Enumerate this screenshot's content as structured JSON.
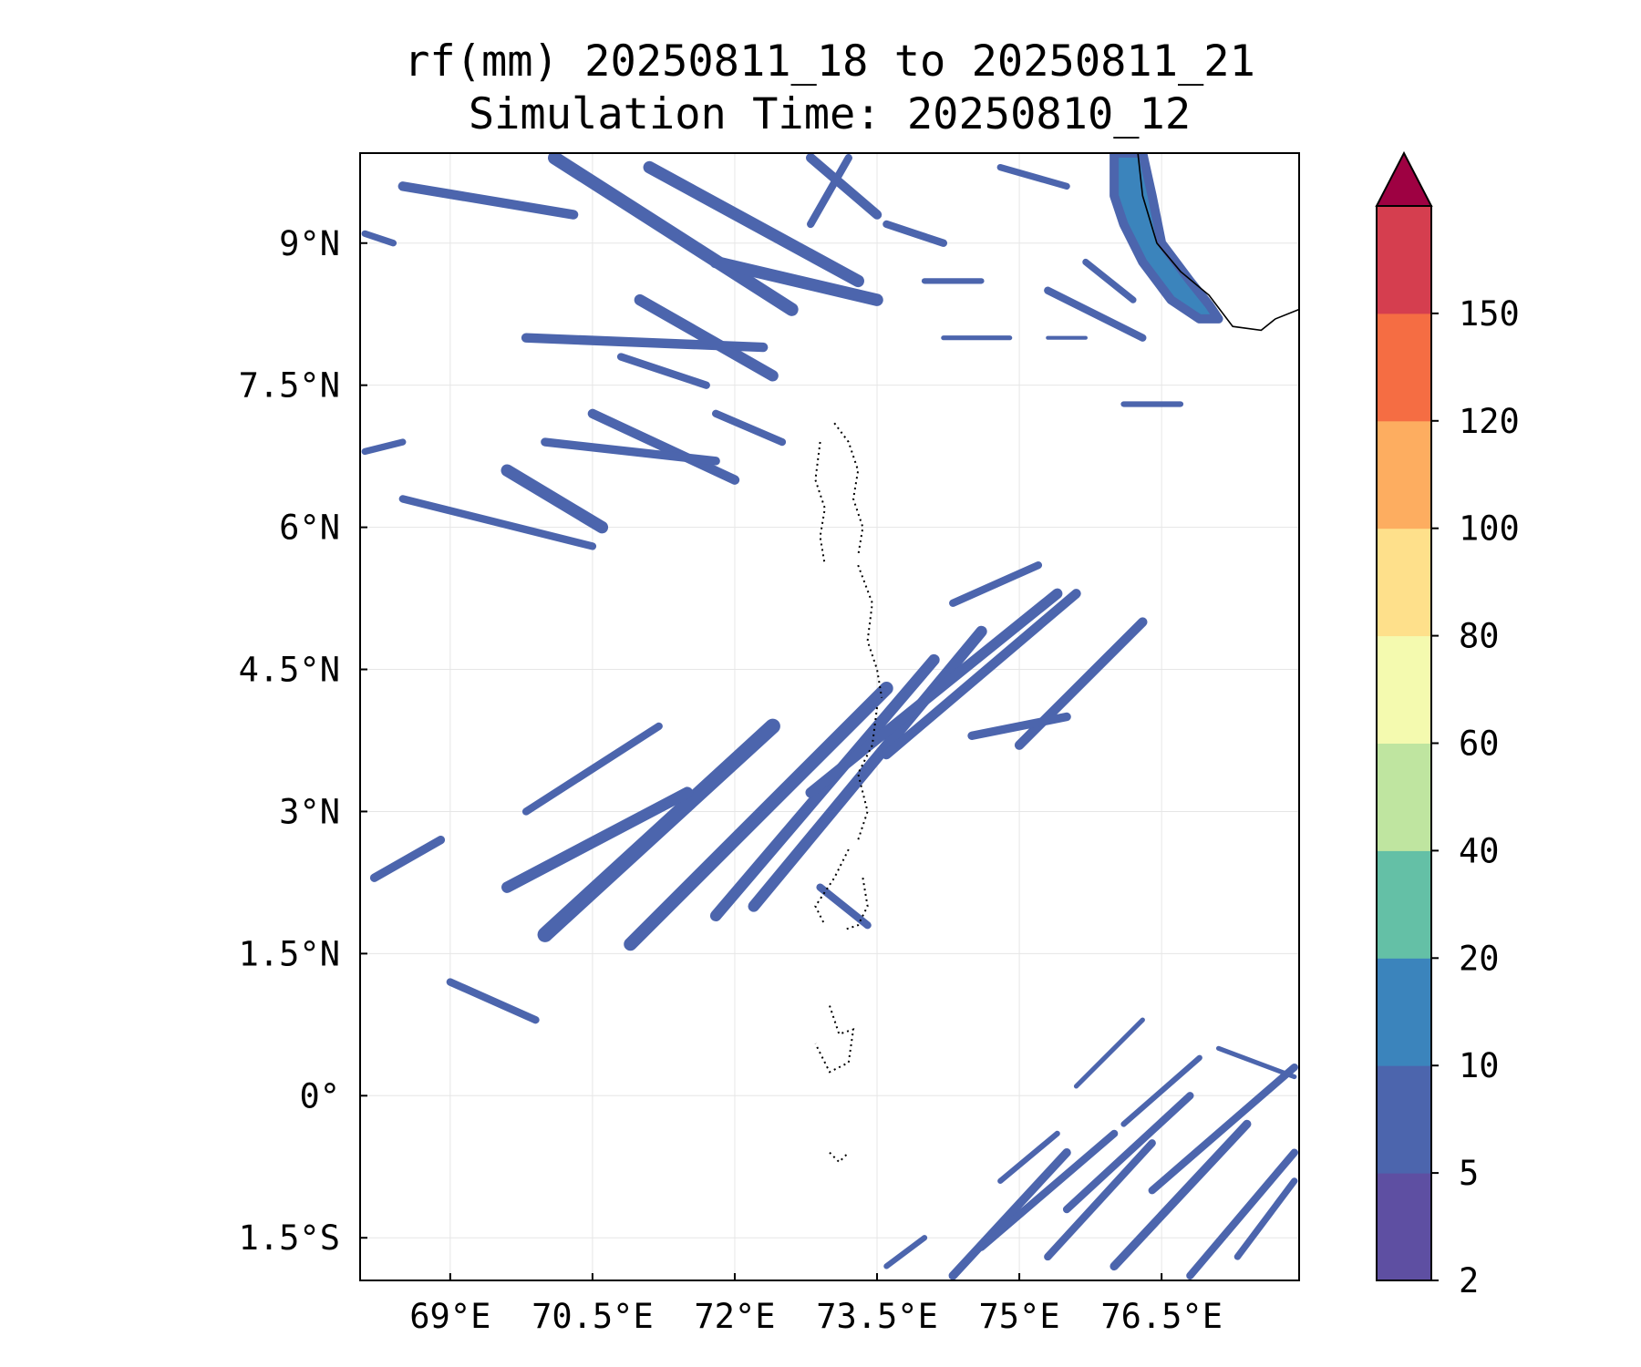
{
  "title": {
    "line1": "rf(mm) 20250811_18 to 20250811_21",
    "line2": "Simulation Time: 20250810_12"
  },
  "map": {
    "lon_range": [
      68.05,
      77.95
    ],
    "lat_range": [
      -1.95,
      9.95
    ],
    "x_ticks": [
      {
        "value": 69,
        "label": "69°E"
      },
      {
        "value": 70.5,
        "label": "70.5°E"
      },
      {
        "value": 72,
        "label": "72°E"
      },
      {
        "value": 73.5,
        "label": "73.5°E"
      },
      {
        "value": 75,
        "label": "75°E"
      },
      {
        "value": 76.5,
        "label": "76.5°E"
      }
    ],
    "y_ticks": [
      {
        "value": 9,
        "label": "9°N"
      },
      {
        "value": 7.5,
        "label": "7.5°N"
      },
      {
        "value": 6,
        "label": "6°N"
      },
      {
        "value": 4.5,
        "label": "4.5°N"
      },
      {
        "value": 3,
        "label": "3°N"
      },
      {
        "value": 1.5,
        "label": "1.5°N"
      },
      {
        "value": 0,
        "label": "0°"
      },
      {
        "value": -1.5,
        "label": "1.5°S"
      }
    ],
    "gridlines": true,
    "rain_bands": [
      {
        "from": [
          70.0,
          1.7
        ],
        "to": [
          72.4,
          3.9
        ],
        "width": 0.16
      },
      {
        "from": [
          70.9,
          1.6
        ],
        "to": [
          73.6,
          4.3
        ],
        "width": 0.14
      },
      {
        "from": [
          71.8,
          1.9
        ],
        "to": [
          74.1,
          4.6
        ],
        "width": 0.12
      },
      {
        "from": [
          72.2,
          2.0
        ],
        "to": [
          74.6,
          4.9
        ],
        "width": 0.12
      },
      {
        "from": [
          72.8,
          3.2
        ],
        "to": [
          75.4,
          5.3
        ],
        "width": 0.11
      },
      {
        "from": [
          73.6,
          3.6
        ],
        "to": [
          75.6,
          5.3
        ],
        "width": 0.1
      },
      {
        "from": [
          75.0,
          3.7
        ],
        "to": [
          76.3,
          5.0
        ],
        "width": 0.1
      },
      {
        "from": [
          69.6,
          2.2
        ],
        "to": [
          71.5,
          3.2
        ],
        "width": 0.12
      },
      {
        "from": [
          68.2,
          2.3
        ],
        "to": [
          68.9,
          2.7
        ],
        "width": 0.09
      },
      {
        "from": [
          69.0,
          1.2
        ],
        "to": [
          69.9,
          0.8
        ],
        "width": 0.08
      },
      {
        "from": [
          74.5,
          3.8
        ],
        "to": [
          75.5,
          4.0
        ],
        "width": 0.09
      },
      {
        "from": [
          74.3,
          5.2
        ],
        "to": [
          75.2,
          5.6
        ],
        "width": 0.08
      },
      {
        "from": [
          69.8,
          3.0
        ],
        "to": [
          71.2,
          3.9
        ],
        "width": 0.08
      },
      {
        "from": [
          72.9,
          2.2
        ],
        "to": [
          73.4,
          1.8
        ],
        "width": 0.08
      },
      {
        "from": [
          68.5,
          9.6
        ],
        "to": [
          70.3,
          9.3
        ],
        "width": 0.1
      },
      {
        "from": [
          70.1,
          9.9
        ],
        "to": [
          72.6,
          8.3
        ],
        "width": 0.14
      },
      {
        "from": [
          71.1,
          9.8
        ],
        "to": [
          73.3,
          8.6
        ],
        "width": 0.13
      },
      {
        "from": [
          71.8,
          8.8
        ],
        "to": [
          73.5,
          8.4
        ],
        "width": 0.13
      },
      {
        "from": [
          72.8,
          9.9
        ],
        "to": [
          73.5,
          9.3
        ],
        "width": 0.1
      },
      {
        "from": [
          73.6,
          9.2
        ],
        "to": [
          74.2,
          9.0
        ],
        "width": 0.08
      },
      {
        "from": [
          72.8,
          9.2
        ],
        "to": [
          73.2,
          9.9
        ],
        "width": 0.08
      },
      {
        "from": [
          69.8,
          8.0
        ],
        "to": [
          72.3,
          7.9
        ],
        "width": 0.1
      },
      {
        "from": [
          71.0,
          8.4
        ],
        "to": [
          72.4,
          7.6
        ],
        "width": 0.12
      },
      {
        "from": [
          69.6,
          6.6
        ],
        "to": [
          70.6,
          6.0
        ],
        "width": 0.13
      },
      {
        "from": [
          70.5,
          7.2
        ],
        "to": [
          72.0,
          6.5
        ],
        "width": 0.1
      },
      {
        "from": [
          70.0,
          6.9
        ],
        "to": [
          71.8,
          6.7
        ],
        "width": 0.09
      },
      {
        "from": [
          68.5,
          6.3
        ],
        "to": [
          70.5,
          5.8
        ],
        "width": 0.08
      },
      {
        "from": [
          70.8,
          7.8
        ],
        "to": [
          71.7,
          7.5
        ],
        "width": 0.08
      },
      {
        "from": [
          71.8,
          7.2
        ],
        "to": [
          72.5,
          6.9
        ],
        "width": 0.08
      },
      {
        "from": [
          68.1,
          6.8
        ],
        "to": [
          68.5,
          6.9
        ],
        "width": 0.07
      },
      {
        "from": [
          68.1,
          9.1
        ],
        "to": [
          68.4,
          9.0
        ],
        "width": 0.07
      },
      {
        "from": [
          74.0,
          8.6
        ],
        "to": [
          74.6,
          8.6
        ],
        "width": 0.06
      },
      {
        "from": [
          74.8,
          9.8
        ],
        "to": [
          75.5,
          9.6
        ],
        "width": 0.07
      },
      {
        "from": [
          75.3,
          8.5
        ],
        "to": [
          76.3,
          8.0
        ],
        "width": 0.08
      },
      {
        "from": [
          74.2,
          8.0
        ],
        "to": [
          74.9,
          8.0
        ],
        "width": 0.05
      },
      {
        "from": [
          75.3,
          8.0
        ],
        "to": [
          75.7,
          8.0
        ],
        "width": 0.04
      },
      {
        "from": [
          76.1,
          7.3
        ],
        "to": [
          76.7,
          7.3
        ],
        "width": 0.06
      },
      {
        "from": [
          75.7,
          8.8
        ],
        "to": [
          76.2,
          8.4
        ],
        "width": 0.07
      },
      {
        "from": [
          74.3,
          -1.9
        ],
        "to": [
          75.5,
          -0.6
        ],
        "width": 0.09
      },
      {
        "from": [
          74.6,
          -1.6
        ],
        "to": [
          76.0,
          -0.4
        ],
        "width": 0.08
      },
      {
        "from": [
          75.3,
          -1.7
        ],
        "to": [
          76.4,
          -0.5
        ],
        "width": 0.08
      },
      {
        "from": [
          75.5,
          -1.2
        ],
        "to": [
          76.8,
          0.0
        ],
        "width": 0.08
      },
      {
        "from": [
          76.0,
          -1.8
        ],
        "to": [
          77.4,
          -0.3
        ],
        "width": 0.09
      },
      {
        "from": [
          76.4,
          -1.0
        ],
        "to": [
          77.9,
          0.3
        ],
        "width": 0.08
      },
      {
        "from": [
          76.8,
          -1.9
        ],
        "to": [
          77.9,
          -0.6
        ],
        "width": 0.08
      },
      {
        "from": [
          77.3,
          -1.7
        ],
        "to": [
          77.9,
          -0.9
        ],
        "width": 0.07
      },
      {
        "from": [
          74.8,
          -0.9
        ],
        "to": [
          75.4,
          -0.4
        ],
        "width": 0.06
      },
      {
        "from": [
          73.6,
          -1.8
        ],
        "to": [
          74.0,
          -1.5
        ],
        "width": 0.06
      },
      {
        "from": [
          75.6,
          0.1
        ],
        "to": [
          76.3,
          0.8
        ],
        "width": 0.05
      },
      {
        "from": [
          77.1,
          0.5
        ],
        "to": [
          77.9,
          0.2
        ],
        "width": 0.05
      },
      {
        "from": [
          76.1,
          -0.3
        ],
        "to": [
          76.9,
          0.4
        ],
        "width": 0.06
      }
    ],
    "coast_heavy": {
      "polygon": [
        [
          76.0,
          9.95
        ],
        [
          76.3,
          9.95
        ],
        [
          76.4,
          9.5
        ],
        [
          76.5,
          9.0
        ],
        [
          76.8,
          8.6
        ],
        [
          77.0,
          8.35
        ],
        [
          77.1,
          8.2
        ],
        [
          76.9,
          8.2
        ],
        [
          76.6,
          8.4
        ],
        [
          76.3,
          8.8
        ],
        [
          76.1,
          9.2
        ],
        [
          76.0,
          9.5
        ]
      ]
    },
    "coastline": [
      [
        76.25,
        9.95
      ],
      [
        76.3,
        9.5
      ],
      [
        76.45,
        9.0
      ],
      [
        76.7,
        8.7
      ],
      [
        77.0,
        8.45
      ],
      [
        77.25,
        8.12
      ],
      [
        77.55,
        8.08
      ],
      [
        77.7,
        8.2
      ],
      [
        77.95,
        8.3
      ]
    ],
    "atoll_outlines": [
      [
        [
          73.05,
          7.1
        ],
        [
          73.2,
          6.9
        ],
        [
          73.3,
          6.6
        ],
        [
          73.25,
          6.3
        ],
        [
          73.35,
          6.0
        ],
        [
          73.3,
          5.7
        ]
      ],
      [
        [
          72.9,
          6.9
        ],
        [
          72.85,
          6.5
        ],
        [
          72.95,
          6.2
        ],
        [
          72.9,
          5.9
        ],
        [
          72.95,
          5.6
        ]
      ],
      [
        [
          73.3,
          5.6
        ],
        [
          73.45,
          5.2
        ],
        [
          73.4,
          4.8
        ],
        [
          73.5,
          4.5
        ],
        [
          73.55,
          4.2
        ]
      ],
      [
        [
          73.5,
          4.1
        ],
        [
          73.45,
          3.7
        ],
        [
          73.3,
          3.4
        ],
        [
          73.4,
          3.0
        ],
        [
          73.3,
          2.7
        ]
      ],
      [
        [
          73.2,
          2.6
        ],
        [
          73.05,
          2.3
        ],
        [
          72.85,
          2.0
        ],
        [
          72.95,
          1.8
        ]
      ],
      [
        [
          73.35,
          2.3
        ],
        [
          73.4,
          2.0
        ],
        [
          73.3,
          1.8
        ],
        [
          73.15,
          1.75
        ]
      ],
      [
        [
          73.0,
          0.95
        ],
        [
          73.1,
          0.65
        ],
        [
          73.25,
          0.7
        ],
        [
          73.2,
          0.35
        ],
        [
          73.0,
          0.25
        ],
        [
          72.85,
          0.55
        ]
      ],
      [
        [
          73.0,
          -0.6
        ],
        [
          73.1,
          -0.7
        ],
        [
          73.2,
          -0.6
        ]
      ]
    ]
  },
  "colorbar": {
    "levels": [
      2,
      5,
      10,
      20,
      40,
      60,
      80,
      100,
      120,
      150
    ],
    "labels": [
      "2",
      "5",
      "10",
      "20",
      "40",
      "60",
      "80",
      "100",
      "120",
      "150"
    ],
    "colors": [
      "#5e4fa2",
      "#4c65ad",
      "#3b84bc",
      "#64c0a6",
      "#bfe5a0",
      "#f4faaf",
      "#fee08b",
      "#fdad60",
      "#f56d43",
      "#d53e4f"
    ],
    "extend_color": "#9e0142"
  }
}
